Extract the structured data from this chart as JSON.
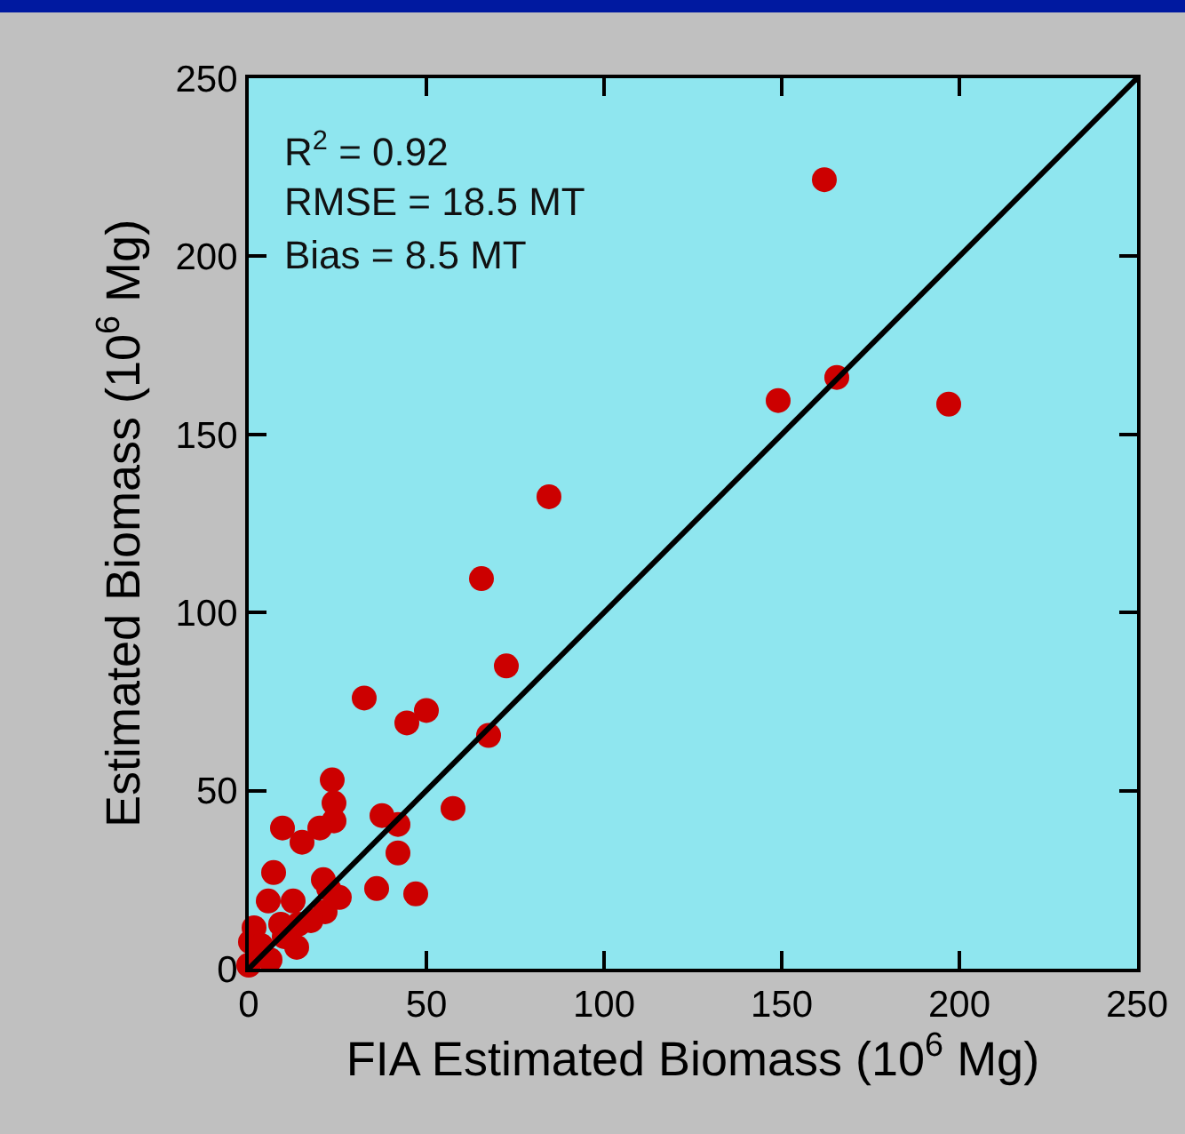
{
  "chart_data": {
    "type": "scatter",
    "xlabel": "FIA Estimated Biomass (10$^{6}$ Mg)",
    "ylabel": "Estimated Biomass (10$^{6}$ Mg)",
    "annotations": [
      "R$^{2}$ = 0.92",
      "RMSE = 18.5 MT",
      "Bias = 8.5 MT"
    ],
    "xlim": [
      0,
      250
    ],
    "ylim": [
      0,
      250
    ],
    "xticks": [
      0,
      50,
      100,
      150,
      200,
      250
    ],
    "yticks": [
      0,
      50,
      100,
      150,
      200,
      250
    ],
    "grid": false,
    "legend": false,
    "series": [
      {
        "color": "#cc0000",
        "marker": "circle",
        "x": [
          197,
          162,
          165.5,
          149,
          84.5,
          65.5,
          72.5,
          32.5,
          50,
          44.5,
          67.5,
          57.5,
          23.5,
          24,
          24,
          20,
          9.5,
          37.5,
          42,
          42,
          36,
          47,
          15,
          21,
          22.5,
          25.5,
          7,
          5.5,
          12.5,
          21.5,
          17.5,
          14,
          13.5,
          9,
          1.5,
          0.5,
          0,
          6,
          3.5,
          10
        ],
        "values": [
          158.5,
          221.5,
          166,
          159.5,
          132.5,
          109.5,
          85,
          76,
          72.5,
          69,
          65.5,
          45,
          53,
          46.5,
          41.5,
          39.5,
          39.5,
          43,
          40.5,
          32.5,
          22.5,
          21,
          35.5,
          25,
          22.5,
          20,
          27,
          19,
          19,
          16,
          13.5,
          12.5,
          6,
          12.5,
          11.5,
          7.5,
          1,
          2.5,
          6.5,
          9
        ]
      },
      {
        "type": "line",
        "color": "#000000",
        "marker": "none",
        "line_style": "solid",
        "x": [
          0,
          250
        ],
        "values": [
          0,
          250
        ]
      }
    ]
  }
}
